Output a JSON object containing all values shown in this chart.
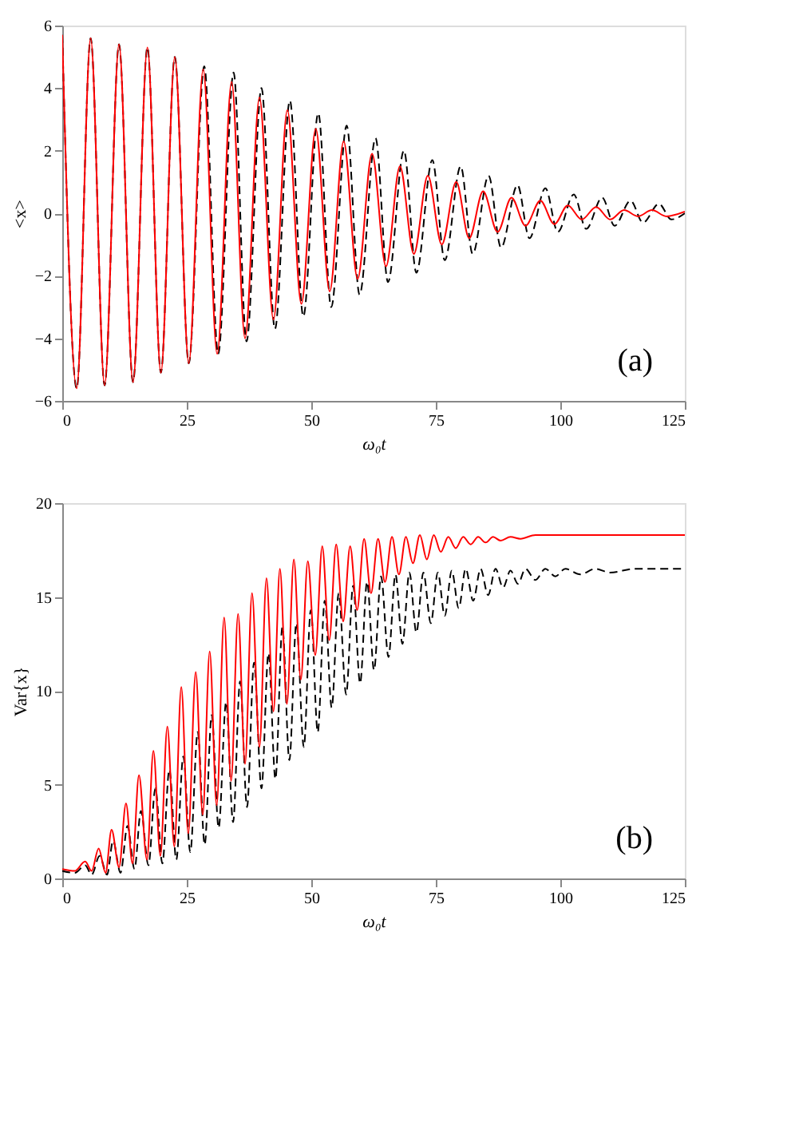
{
  "chart_data": [
    {
      "type": "line",
      "xlabel": "ω₀t",
      "ylabel": "<x>",
      "annotations": [
        "(a)"
      ],
      "xlim": [
        0,
        125
      ],
      "xticks": [
        0,
        25,
        50,
        75,
        100,
        125
      ],
      "ylim": [
        -6,
        6
      ],
      "yticks": [
        -6,
        -4,
        -2,
        0,
        2,
        4,
        6
      ],
      "grid": false,
      "series": [
        {
          "color": "#000000",
          "line_style": "dashed",
          "x": [
            0,
            2.9,
            5.7,
            8.5,
            11.4,
            14.2,
            17.1,
            19.8,
            22.6,
            25.4,
            28.5,
            31.3,
            34.4,
            37,
            40,
            42.7,
            45.7,
            48.4,
            51.4,
            54,
            57.1,
            59.7,
            62.9,
            65.4,
            68.6,
            71.1,
            74.3,
            76.8,
            80,
            82.4,
            85.6,
            88.1,
            91.4,
            93.8,
            97,
            99.5,
            102.7,
            105.2,
            108.4,
            110.9,
            114.1,
            116.6,
            119.8,
            122.3,
            125
          ],
          "values": [
            5.7,
            -5.6,
            5.6,
            -5.5,
            5.4,
            -5.4,
            5.3,
            -5.1,
            5.0,
            -4.8,
            4.7,
            -4.5,
            4.5,
            -4.1,
            4.0,
            -3.7,
            3.6,
            -3.3,
            3.2,
            -3.0,
            2.8,
            -2.6,
            2.4,
            -2.2,
            2.0,
            -1.9,
            1.7,
            -1.5,
            1.5,
            -1.3,
            1.2,
            -1.1,
            0.9,
            -0.8,
            0.8,
            -0.6,
            0.6,
            -0.5,
            0.5,
            -0.4,
            0.4,
            -0.3,
            0.3,
            -0.2,
            0
          ]
        },
        {
          "color": "#ff0000",
          "line_style": "solid",
          "x": [
            0,
            2.9,
            5.7,
            8.5,
            11.4,
            14.2,
            17.1,
            19.8,
            22.6,
            25.4,
            28.3,
            31.1,
            34,
            36.7,
            39.6,
            42.4,
            45.2,
            48,
            50.9,
            53.7,
            56.5,
            59.3,
            62.2,
            65,
            67.8,
            70.6,
            73.4,
            76.2,
            79.1,
            81.7,
            84.5,
            87.4,
            90.2,
            93,
            96,
            98.8,
            101.5,
            104.3,
            107.2,
            110,
            112.8,
            115.6,
            118.4,
            121.3,
            125
          ],
          "values": [
            5.7,
            -5.6,
            5.6,
            -5.5,
            5.4,
            -5.4,
            5.3,
            -5.1,
            5.0,
            -4.8,
            4.6,
            -4.5,
            4.2,
            -4.0,
            3.7,
            -3.4,
            3.3,
            -2.9,
            2.7,
            -2.5,
            2.3,
            -2.1,
            1.9,
            -1.7,
            1.5,
            -1.3,
            1.2,
            -1.0,
            1.0,
            -0.8,
            0.7,
            -0.6,
            0.5,
            -0.4,
            0.4,
            -0.35,
            0.25,
            -0.2,
            0.2,
            -0.2,
            0.1,
            -0.1,
            0.1,
            -0.1,
            0.05
          ]
        }
      ]
    },
    {
      "type": "line",
      "xlabel": "ω₀t",
      "ylabel": "Var{x}",
      "annotations": [
        "(b)"
      ],
      "xlim": [
        0,
        125
      ],
      "xticks": [
        0,
        25,
        50,
        75,
        100,
        125
      ],
      "ylim": [
        0,
        20
      ],
      "yticks": [
        0,
        5,
        10,
        15,
        20
      ],
      "grid": false,
      "series": [
        {
          "color": "#000000",
          "line_style": "dashed",
          "x": [
            0,
            2.5,
            4.6,
            5.9,
            7.5,
            9,
            10.2,
            11.7,
            13.1,
            14.5,
            15.8,
            17.3,
            18.7,
            20.1,
            21.5,
            22.9,
            24.3,
            25.7,
            27.2,
            28.6,
            30,
            31.4,
            32.9,
            34.3,
            35.7,
            37.1,
            38.5,
            40,
            41.4,
            42.8,
            44.2,
            45.6,
            47,
            48.5,
            49.9,
            51.3,
            52.7,
            54.1,
            55.5,
            57,
            58.4,
            59.8,
            61.2,
            62.6,
            64,
            65.5,
            66.9,
            68.3,
            69.7,
            71.1,
            72.5,
            74,
            75.4,
            76.8,
            78.2,
            79.6,
            81,
            82.5,
            84,
            85.5,
            87,
            88.5,
            90,
            91.5,
            93,
            95,
            97,
            99,
            101,
            104,
            107,
            110,
            115,
            125
          ],
          "values": [
            0.4,
            0.3,
            0.7,
            0.2,
            1.2,
            0.2,
            2.0,
            0.3,
            2.8,
            0.5,
            3.6,
            0.7,
            4.8,
            0.8,
            5.8,
            1.0,
            6.5,
            1.4,
            7.8,
            1.8,
            8.7,
            2.7,
            9.4,
            3.0,
            10.5,
            3.8,
            11.5,
            4.8,
            12.0,
            5.3,
            13.4,
            6.3,
            13.6,
            7.0,
            14.3,
            7.8,
            14.8,
            9.1,
            15.2,
            9.8,
            15.6,
            10.4,
            15.8,
            11.1,
            16.1,
            11.8,
            16.2,
            12.5,
            16.3,
            13.1,
            16.3,
            13.6,
            16.3,
            14.0,
            16.4,
            14.4,
            16.5,
            14.8,
            16.5,
            15.1,
            16.5,
            15.5,
            16.4,
            15.7,
            16.5,
            15.9,
            16.5,
            16.1,
            16.5,
            16.2,
            16.5,
            16.3,
            16.5,
            16.5
          ]
        },
        {
          "color": "#ff0000",
          "line_style": "solid",
          "x": [
            0,
            2.5,
            4.6,
            5.9,
            7.3,
            8.7,
            9.9,
            11.4,
            12.8,
            14.1,
            15.4,
            17,
            18.3,
            19.7,
            21.1,
            22.5,
            23.9,
            25.3,
            26.8,
            28.2,
            29.6,
            31,
            32.5,
            33.9,
            35.3,
            36.7,
            38.1,
            39.6,
            41,
            42.4,
            43.7,
            45.1,
            46.5,
            47.9,
            49.3,
            50.8,
            52.2,
            53.6,
            55,
            56.4,
            57.8,
            59.2,
            60.6,
            62,
            63.4,
            64.8,
            66.2,
            67.6,
            69,
            70.4,
            71.8,
            73.2,
            74.6,
            76,
            77.5,
            79,
            80.5,
            82,
            83.5,
            85,
            86.5,
            88,
            90,
            92,
            95,
            100,
            125
          ],
          "values": [
            0.5,
            0.4,
            0.9,
            0.4,
            1.6,
            0.3,
            2.6,
            0.6,
            4.0,
            0.8,
            5.5,
            1.0,
            6.8,
            1.2,
            8.1,
            1.7,
            10.2,
            2.4,
            11.0,
            3.4,
            12.1,
            3.9,
            13.9,
            5.2,
            14.1,
            6.1,
            15.2,
            7.0,
            16.0,
            8.9,
            16.5,
            9.3,
            17.0,
            10.6,
            16.9,
            11.9,
            17.7,
            12.7,
            17.8,
            13.7,
            17.7,
            14.3,
            18.1,
            15.2,
            18.1,
            15.8,
            18.2,
            16.2,
            18.2,
            16.8,
            18.3,
            17.0,
            18.3,
            17.4,
            18.2,
            17.6,
            18.2,
            17.8,
            18.2,
            17.9,
            18.2,
            18.0,
            18.2,
            18.1,
            18.3,
            18.3,
            18.3
          ]
        }
      ]
    }
  ]
}
